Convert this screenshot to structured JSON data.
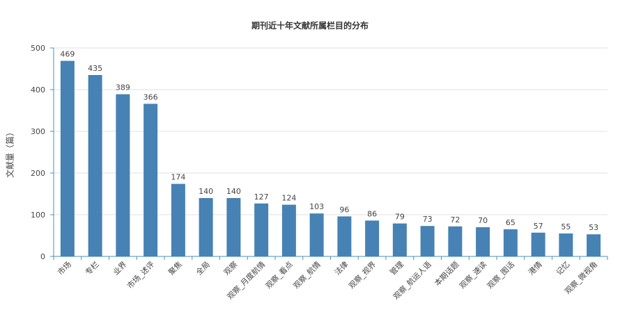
{
  "chart_data": {
    "type": "bar",
    "title": "期刊近十年文献所属栏目的分布",
    "xlabel": "",
    "ylabel": "文献量（篇）",
    "categories": [
      "市场",
      "专栏",
      "业界",
      "市场_述评",
      "聚焦",
      "全局",
      "观察",
      "观察_月度航情",
      "观察_看点",
      "观察_航情",
      "法律",
      "观察_视界",
      "管理",
      "观察_航运人语",
      "本期话题",
      "观察_速读",
      "观察_图话",
      "港情",
      "记忆",
      "观察_微视角"
    ],
    "values": [
      469,
      435,
      389,
      366,
      174,
      140,
      140,
      127,
      124,
      103,
      96,
      86,
      79,
      73,
      72,
      70,
      65,
      57,
      55,
      53
    ],
    "ylim": [
      0,
      500
    ],
    "yticks": [
      0,
      100,
      200,
      300,
      400,
      500
    ],
    "grid": true,
    "legend": "none",
    "bar_color": "#4682b4",
    "axis_color": "#4a90b8"
  }
}
